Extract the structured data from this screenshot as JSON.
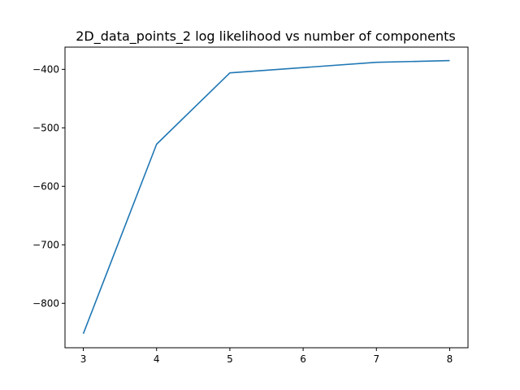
{
  "chart_data": {
    "type": "line",
    "title": "2D_data_points_2 log likelihood vs number of components",
    "xlabel": "",
    "ylabel": "",
    "grid": false,
    "x": [
      3,
      4,
      5,
      7,
      8
    ],
    "x_tick_values": [
      3,
      4,
      5,
      6,
      7,
      8
    ],
    "x_tick_labels": [
      "3",
      "4",
      "5",
      "6",
      "7",
      "8"
    ],
    "y_tick_values": [
      -800,
      -700,
      -600,
      -500,
      -400
    ],
    "y_tick_labels": [
      "−800",
      "−700",
      "−600",
      "−500",
      "−400"
    ],
    "xlim": [
      2.75,
      8.25
    ],
    "ylim": [
      -876,
      -362
    ],
    "series": [
      {
        "values": [
          -852,
          -528,
          -406,
          -388,
          -385
        ],
        "color": "#1f77b4"
      }
    ]
  }
}
